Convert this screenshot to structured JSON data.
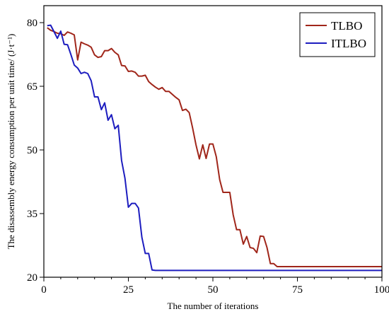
{
  "chart_data": {
    "type": "line",
    "title": "",
    "xlabel": "The number of iterations",
    "ylabel": "The disassembly energy consumption per unit time/ (J·t⁻¹)",
    "xlim": [
      0,
      100
    ],
    "ylim": [
      20,
      84
    ],
    "x_ticks": [
      0,
      25,
      50,
      75,
      100
    ],
    "y_ticks": [
      20,
      35,
      50,
      65,
      80
    ],
    "grid": false,
    "legend_position": "top-right",
    "series": [
      {
        "name": "TLBO",
        "color": "#a0261a",
        "x": [
          1,
          2,
          3,
          4,
          5,
          6,
          7,
          8,
          9,
          10,
          11,
          12,
          13,
          14,
          15,
          16,
          17,
          18,
          19,
          20,
          21,
          22,
          23,
          24,
          25,
          26,
          27,
          28,
          29,
          30,
          31,
          32,
          33,
          34,
          35,
          36,
          37,
          38,
          39,
          40,
          41,
          42,
          43,
          44,
          45,
          46,
          47,
          48,
          49,
          50,
          51,
          52,
          53,
          54,
          55,
          56,
          57,
          58,
          59,
          60,
          61,
          62,
          63,
          64,
          65,
          66,
          67,
          68,
          69,
          70,
          75,
          80,
          85,
          90,
          95,
          100
        ],
        "values": [
          78.8,
          78.2,
          77.9,
          77.5,
          77.4,
          77.0,
          77.8,
          77.5,
          77.1,
          71.2,
          75.4,
          75.0,
          74.7,
          74.2,
          72.4,
          71.8,
          72.0,
          73.4,
          73.4,
          73.9,
          73.0,
          72.4,
          69.9,
          69.8,
          68.5,
          68.6,
          68.3,
          67.4,
          67.4,
          67.6,
          66.1,
          65.4,
          64.8,
          64.3,
          64.7,
          63.8,
          63.8,
          63.1,
          62.4,
          61.8,
          59.3,
          59.6,
          58.8,
          55.2,
          51.2,
          47.9,
          51.2,
          48.0,
          51.4,
          51.4,
          48.4,
          43.0,
          40.0,
          40.0,
          40.0,
          34.7,
          31.2,
          31.2,
          27.8,
          29.6,
          27.0,
          26.8,
          25.8,
          29.7,
          29.6,
          27.0,
          23.2,
          23.2,
          22.5,
          22.5,
          22.5,
          22.5,
          22.5,
          22.5,
          22.5,
          22.5
        ]
      },
      {
        "name": "ITLBO",
        "color": "#1d1dbf",
        "x": [
          1,
          2,
          3,
          4,
          5,
          6,
          7,
          8,
          9,
          10,
          11,
          12,
          13,
          14,
          15,
          16,
          17,
          18,
          19,
          20,
          21,
          22,
          23,
          24,
          25,
          26,
          27,
          28,
          29,
          30,
          31,
          32,
          33,
          34,
          35,
          40,
          50,
          60,
          70,
          80,
          90,
          100
        ],
        "values": [
          79.3,
          79.4,
          77.9,
          76.3,
          78.0,
          74.9,
          74.8,
          72.5,
          70.0,
          69.3,
          68.0,
          68.3,
          68.0,
          66.3,
          62.5,
          62.5,
          59.5,
          61.1,
          57.0,
          58.3,
          55.0,
          55.8,
          47.5,
          43.3,
          36.5,
          37.4,
          37.4,
          36.3,
          29.4,
          25.6,
          25.6,
          21.7,
          21.6,
          21.6,
          21.6,
          21.6,
          21.6,
          21.6,
          21.6,
          21.6,
          21.6,
          21.6
        ]
      }
    ]
  }
}
